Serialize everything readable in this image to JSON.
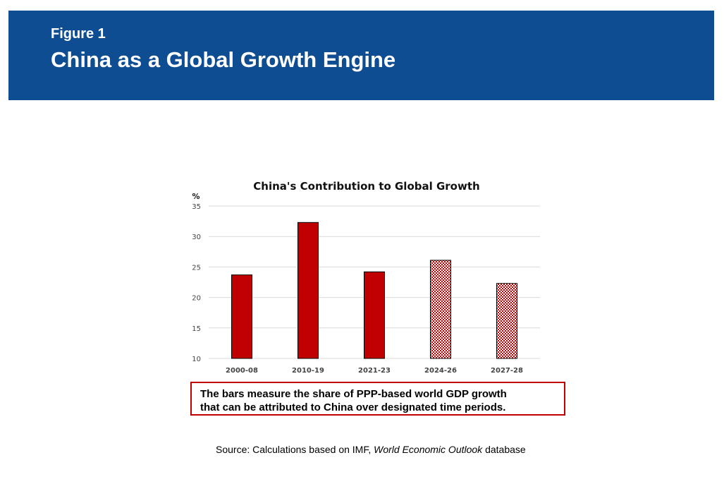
{
  "header": {
    "figure_label": "Figure 1",
    "title": "China as a Global Growth Engine"
  },
  "chart_data": {
    "type": "bar",
    "title": "China's Contribution to Global Growth",
    "ylabel": "%",
    "xlabel": "",
    "categories": [
      "2000-08",
      "2010-19",
      "2021-23",
      "2024-26",
      "2027-28"
    ],
    "values": [
      23.7,
      32.3,
      24.2,
      26.1,
      22.3
    ],
    "projected": [
      false,
      false,
      false,
      true,
      true
    ],
    "ylim": [
      10,
      35
    ],
    "yticks": [
      10,
      15,
      20,
      25,
      30,
      35
    ],
    "grid": true,
    "bar_color": "#c00000",
    "projected_pattern": "red-white checkered (projection)"
  },
  "note": {
    "line1": "The bars measure the share of PPP-based world GDP growth",
    "line2": "that can be attributed to China over designated time periods."
  },
  "source": {
    "prefix": "Source: Calculations based on IMF, ",
    "italic": "World Economic Outlook",
    "suffix": " database"
  },
  "colors": {
    "banner": "#0f4d92",
    "bar": "#c00000",
    "note_border": "#c00000"
  }
}
